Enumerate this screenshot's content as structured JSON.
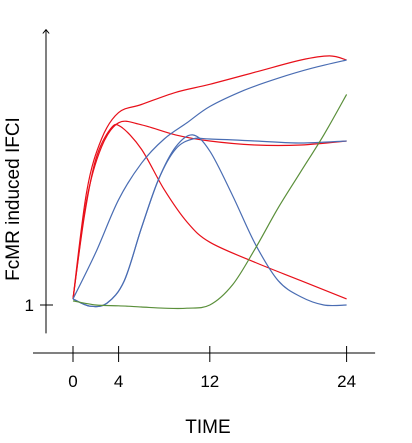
{
  "chart_data": {
    "type": "line",
    "title": "",
    "xlabel": "TIME",
    "ylabel": "FcMR induced IFCI",
    "x_ticks": [
      0,
      4,
      12,
      24
    ],
    "x_tick_labels": [
      "0",
      "4",
      "12",
      "24"
    ],
    "y_ticks": [
      1
    ],
    "y_tick_labels": [
      "1"
    ],
    "xlim": [
      -2.3,
      26.5
    ],
    "ylim": [
      0.3,
      7.8
    ],
    "grid": false,
    "legend": "none",
    "series": [
      {
        "color": "#e8101a",
        "points": [
          [
            0,
            1.15
          ],
          [
            1.2,
            3.8
          ],
          [
            2.5,
            5.1
          ],
          [
            4,
            5.75
          ],
          [
            6,
            5.95
          ],
          [
            9,
            6.25
          ],
          [
            12,
            6.45
          ],
          [
            16,
            6.75
          ],
          [
            20,
            7.05
          ],
          [
            22.5,
            7.15
          ],
          [
            24,
            7.05
          ]
        ]
      },
      {
        "color": "#e8101a",
        "points": [
          [
            0,
            1.15
          ],
          [
            1.2,
            3.6
          ],
          [
            2.5,
            4.9
          ],
          [
            4,
            5.5
          ],
          [
            6,
            5.45
          ],
          [
            9,
            5.2
          ],
          [
            12,
            5.05
          ],
          [
            16,
            4.95
          ],
          [
            20,
            4.95
          ],
          [
            24,
            5.05
          ]
        ]
      },
      {
        "color": "#e8101a",
        "points": [
          [
            0,
            1.15
          ],
          [
            1,
            3.2
          ],
          [
            2,
            4.6
          ],
          [
            3.3,
            5.35
          ],
          [
            4.2,
            5.4
          ],
          [
            6,
            4.85
          ],
          [
            8,
            3.85
          ],
          [
            10,
            3.05
          ],
          [
            12,
            2.55
          ],
          [
            16,
            2.05
          ],
          [
            20,
            1.6
          ],
          [
            24,
            1.15
          ]
        ]
      },
      {
        "color": "#4a6db3",
        "points": [
          [
            0,
            1.15
          ],
          [
            1.5,
            0.97
          ],
          [
            3,
            1.05
          ],
          [
            4.5,
            1.6
          ],
          [
            6,
            2.9
          ],
          [
            7.5,
            4.1
          ],
          [
            9,
            4.85
          ],
          [
            10.5,
            5.1
          ],
          [
            12,
            5.1
          ],
          [
            16,
            5.05
          ],
          [
            20,
            5.0
          ],
          [
            24,
            5.05
          ]
        ]
      },
      {
        "color": "#4a6db3",
        "points": [
          [
            0,
            1.15
          ],
          [
            1.5,
            0.97
          ],
          [
            3,
            1.05
          ],
          [
            4.5,
            1.6
          ],
          [
            6,
            2.9
          ],
          [
            7.5,
            4.1
          ],
          [
            9,
            4.9
          ],
          [
            10.5,
            5.2
          ],
          [
            12,
            4.8
          ],
          [
            14,
            3.7
          ],
          [
            16,
            2.5
          ],
          [
            18,
            1.6
          ],
          [
            20,
            1.2
          ],
          [
            22,
            1.0
          ],
          [
            24,
            1.0
          ]
        ]
      },
      {
        "color": "#4a6db3",
        "points": [
          [
            0,
            1.15
          ],
          [
            2,
            2.3
          ],
          [
            4,
            3.6
          ],
          [
            6,
            4.5
          ],
          [
            8,
            5.1
          ],
          [
            10,
            5.5
          ],
          [
            12,
            5.9
          ],
          [
            15,
            6.3
          ],
          [
            18,
            6.6
          ],
          [
            21,
            6.85
          ],
          [
            24,
            7.05
          ]
        ]
      },
      {
        "color": "#5a8f3a",
        "points": [
          [
            0,
            1.1
          ],
          [
            2,
            1.0
          ],
          [
            4,
            0.98
          ],
          [
            6,
            0.95
          ],
          [
            8,
            0.92
          ],
          [
            10,
            0.92
          ],
          [
            12,
            1.0
          ],
          [
            14,
            1.5
          ],
          [
            16,
            2.4
          ],
          [
            18,
            3.4
          ],
          [
            20,
            4.3
          ],
          [
            22,
            5.2
          ],
          [
            24,
            6.2
          ]
        ]
      }
    ]
  }
}
